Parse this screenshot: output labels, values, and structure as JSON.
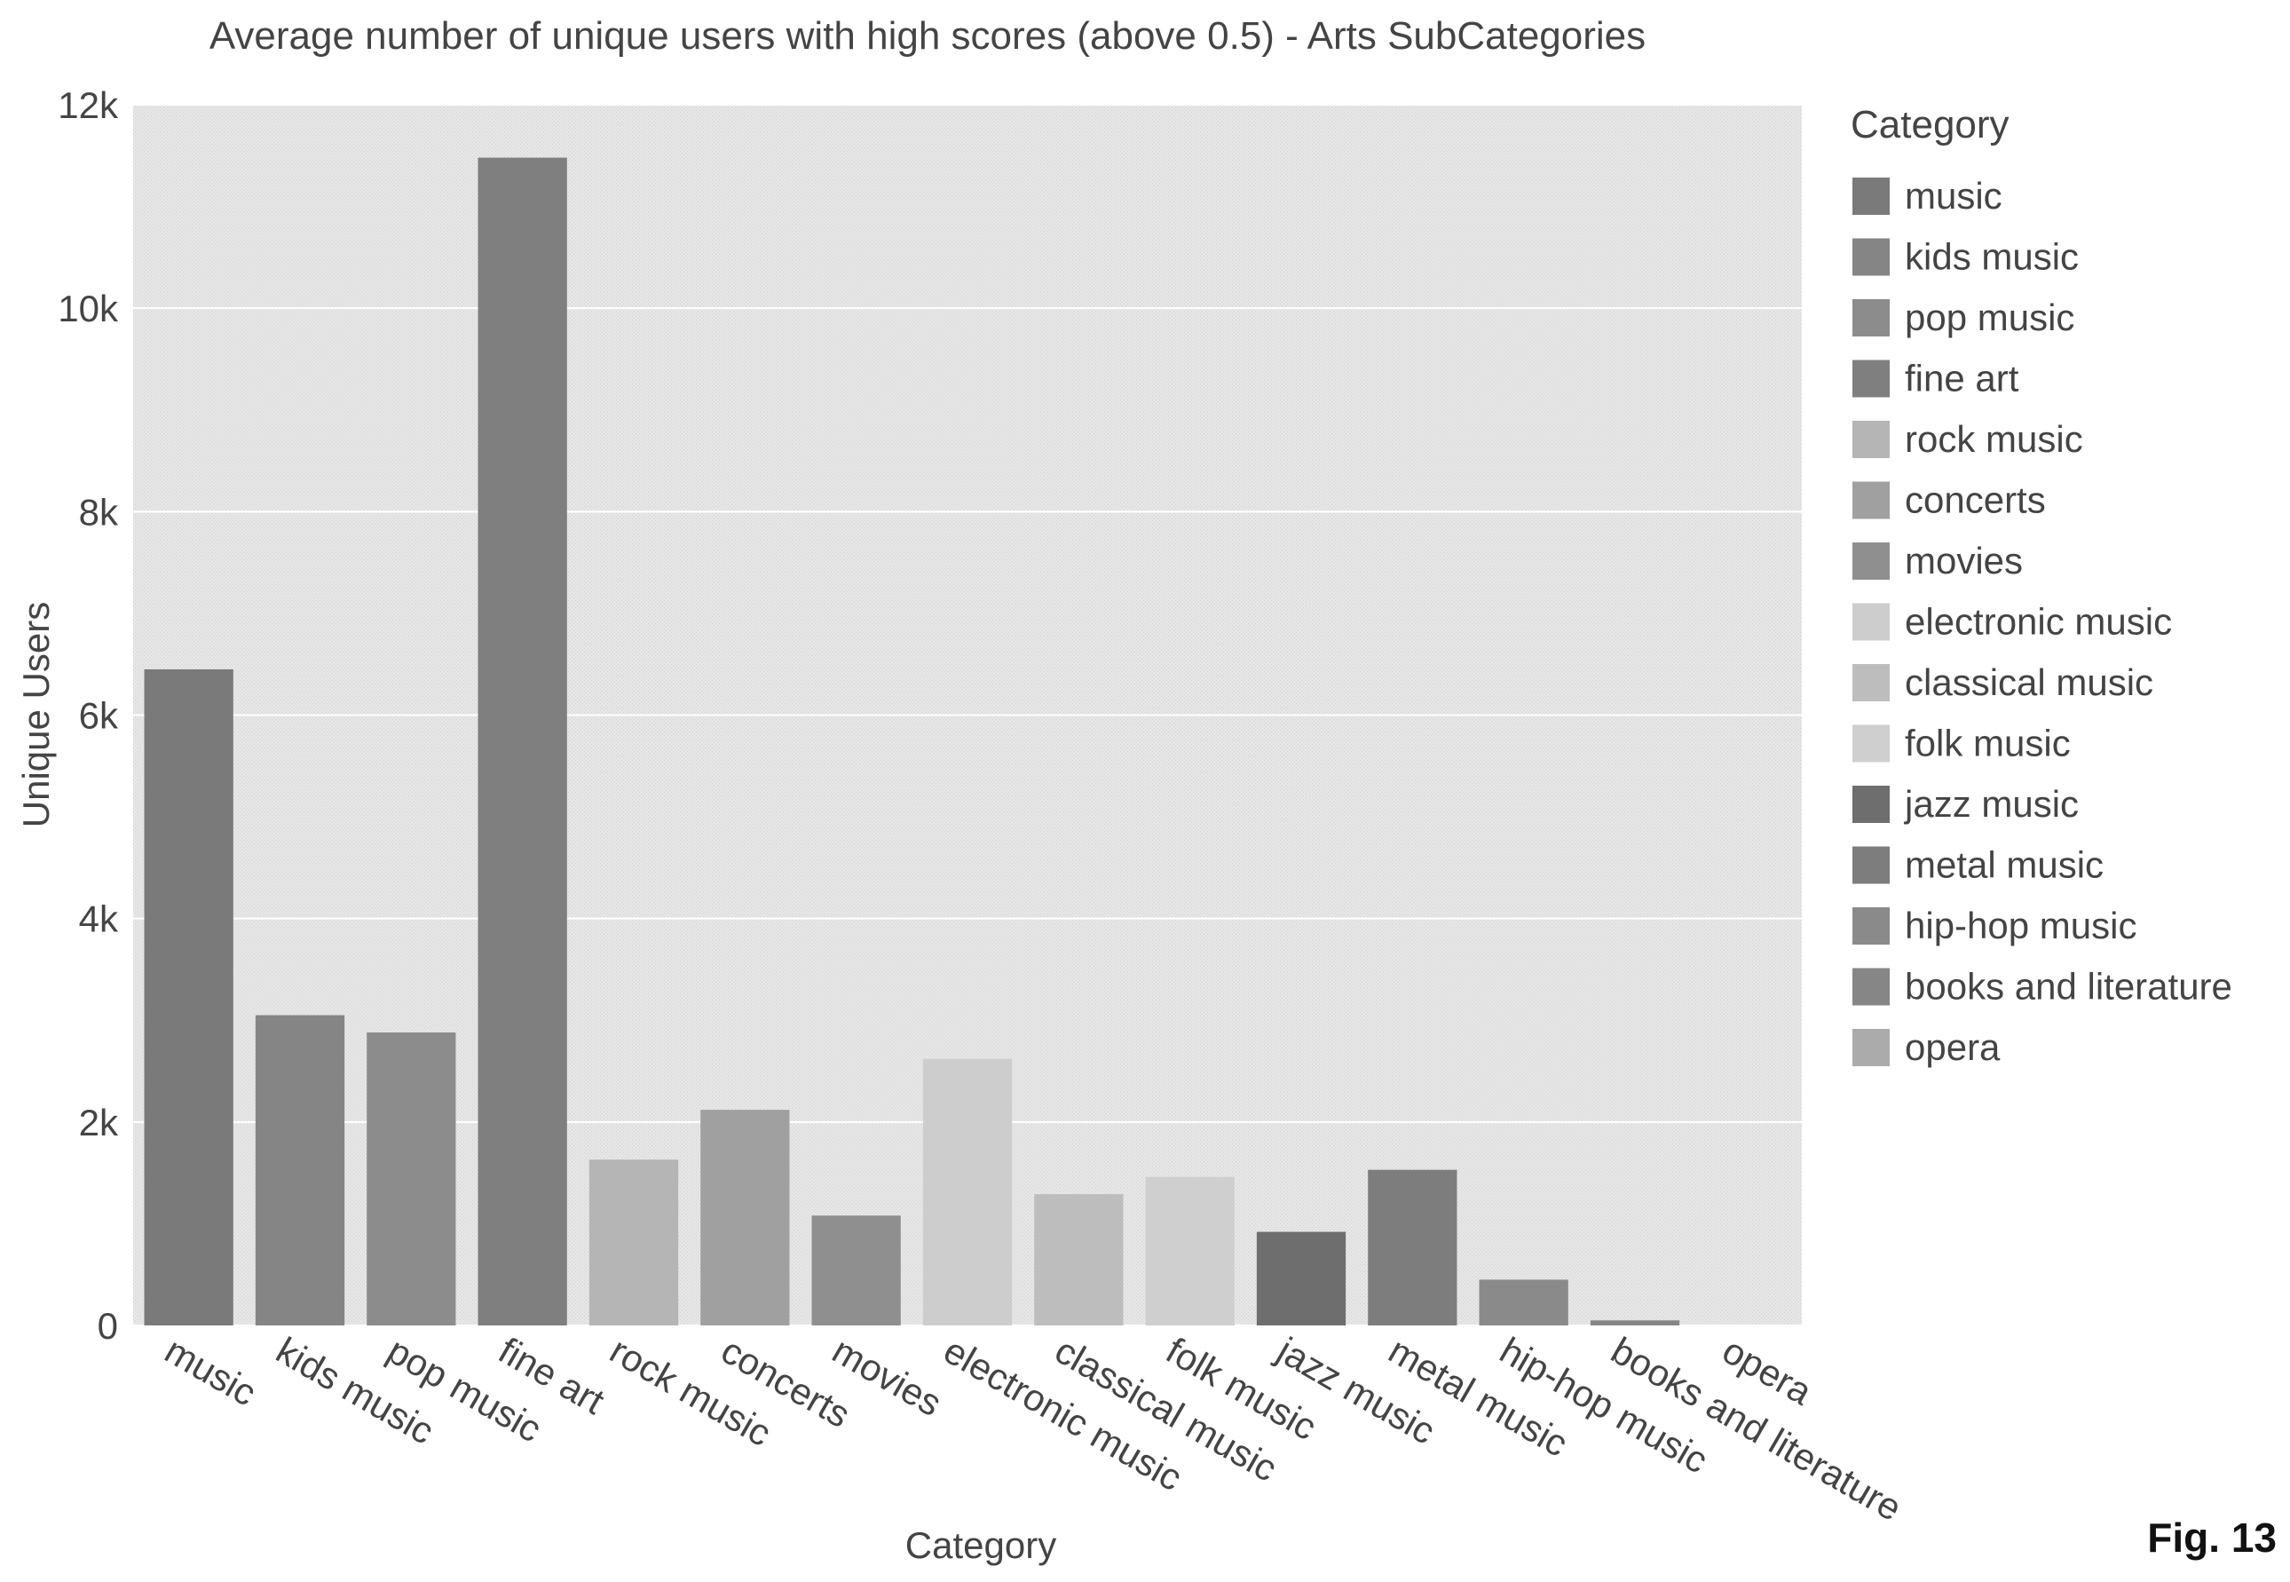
{
  "figure_label": "Fig. 13",
  "chart_data": {
    "type": "bar",
    "title": "Average number of unique users with high scores (above 0.5) - Arts SubCategories",
    "xlabel": "Category",
    "ylabel": "Unique Users",
    "ylim": [
      0,
      12000
    ],
    "y_ticks": [
      0,
      2000,
      4000,
      6000,
      8000,
      10000,
      12000
    ],
    "y_tick_labels": [
      "0",
      "2k",
      "4k",
      "6k",
      "8k",
      "10k",
      "12k"
    ],
    "grid": true,
    "legend_title": "Category",
    "legend_position": "right",
    "categories": [
      "music",
      "kids music",
      "pop music",
      "fine art",
      "rock music",
      "concerts",
      "movies",
      "electronic music",
      "classical music",
      "folk music",
      "jazz music",
      "metal music",
      "hip-hop music",
      "books and literature",
      "opera"
    ],
    "values": [
      6450,
      3050,
      2880,
      11480,
      1630,
      2120,
      1080,
      2620,
      1290,
      1460,
      920,
      1530,
      450,
      50,
      0
    ],
    "colors": [
      "#7a7a7a",
      "#858585",
      "#8c8c8c",
      "#7f7f7f",
      "#b5b5b5",
      "#a0a0a0",
      "#8f8f8f",
      "#cdcdcd",
      "#bdbdbd",
      "#cfcfcf",
      "#6e6e6e",
      "#7d7d7d",
      "#8a8a8a",
      "#868686",
      "#ababab"
    ]
  }
}
